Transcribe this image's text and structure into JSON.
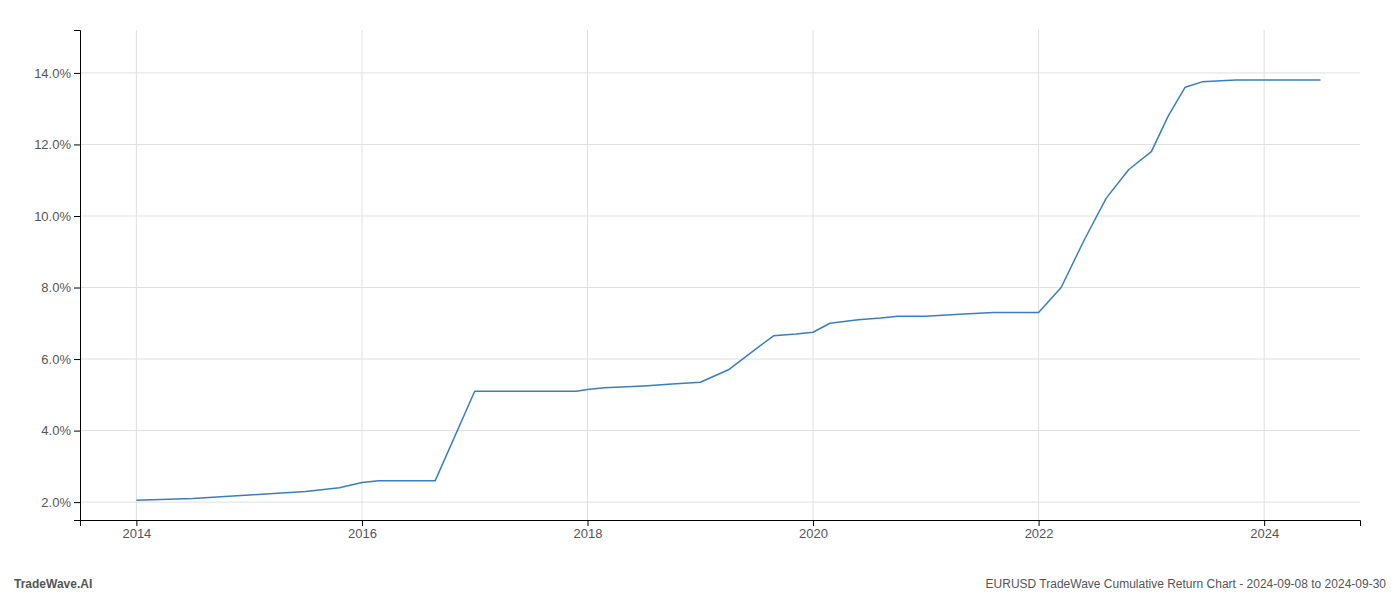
{
  "chart_data": {
    "type": "line",
    "annotations": [
      "TradeWave.AI",
      "EURUSD TradeWave Cumulative Return Chart - 2024-09-08 to 2024-09-30"
    ],
    "color": "#3a7ebf",
    "x": [
      2014.0,
      2014.5,
      2015.0,
      2015.5,
      2015.8,
      2016.0,
      2016.15,
      2016.65,
      2017.0,
      2017.3,
      2017.6,
      2017.9,
      2018.0,
      2018.15,
      2018.5,
      2018.75,
      2019.0,
      2019.25,
      2019.5,
      2019.65,
      2019.85,
      2020.0,
      2020.15,
      2020.4,
      2020.6,
      2020.75,
      2021.0,
      2021.3,
      2021.6,
      2021.9,
      2022.0,
      2022.2,
      2022.4,
      2022.6,
      2022.8,
      2023.0,
      2023.15,
      2023.3,
      2023.45,
      2023.75,
      2024.0,
      2024.5
    ],
    "values": [
      2.05,
      2.1,
      2.2,
      2.3,
      2.4,
      2.55,
      2.6,
      2.6,
      5.1,
      5.1,
      5.1,
      5.1,
      5.15,
      5.2,
      5.25,
      5.3,
      5.35,
      5.7,
      6.3,
      6.65,
      6.7,
      6.75,
      7.0,
      7.1,
      7.15,
      7.2,
      7.2,
      7.25,
      7.3,
      7.3,
      7.3,
      8.0,
      9.3,
      10.5,
      11.3,
      11.8,
      12.8,
      13.6,
      13.75,
      13.8,
      13.8,
      13.8
    ],
    "xlim": [
      2013.5,
      2024.85
    ],
    "ylim": [
      1.5,
      15.2
    ],
    "xticks": [
      2014,
      2016,
      2018,
      2020,
      2022,
      2024
    ],
    "yticks": [
      {
        "value": 2.0,
        "label": "2.0%"
      },
      {
        "value": 4.0,
        "label": "4.0%"
      },
      {
        "value": 6.0,
        "label": "6.0%"
      },
      {
        "value": 8.0,
        "label": "8.0%"
      },
      {
        "value": 10.0,
        "label": "10.0%"
      },
      {
        "value": 12.0,
        "label": "12.0%"
      },
      {
        "value": 14.0,
        "label": "14.0%"
      }
    ],
    "grid": true
  }
}
